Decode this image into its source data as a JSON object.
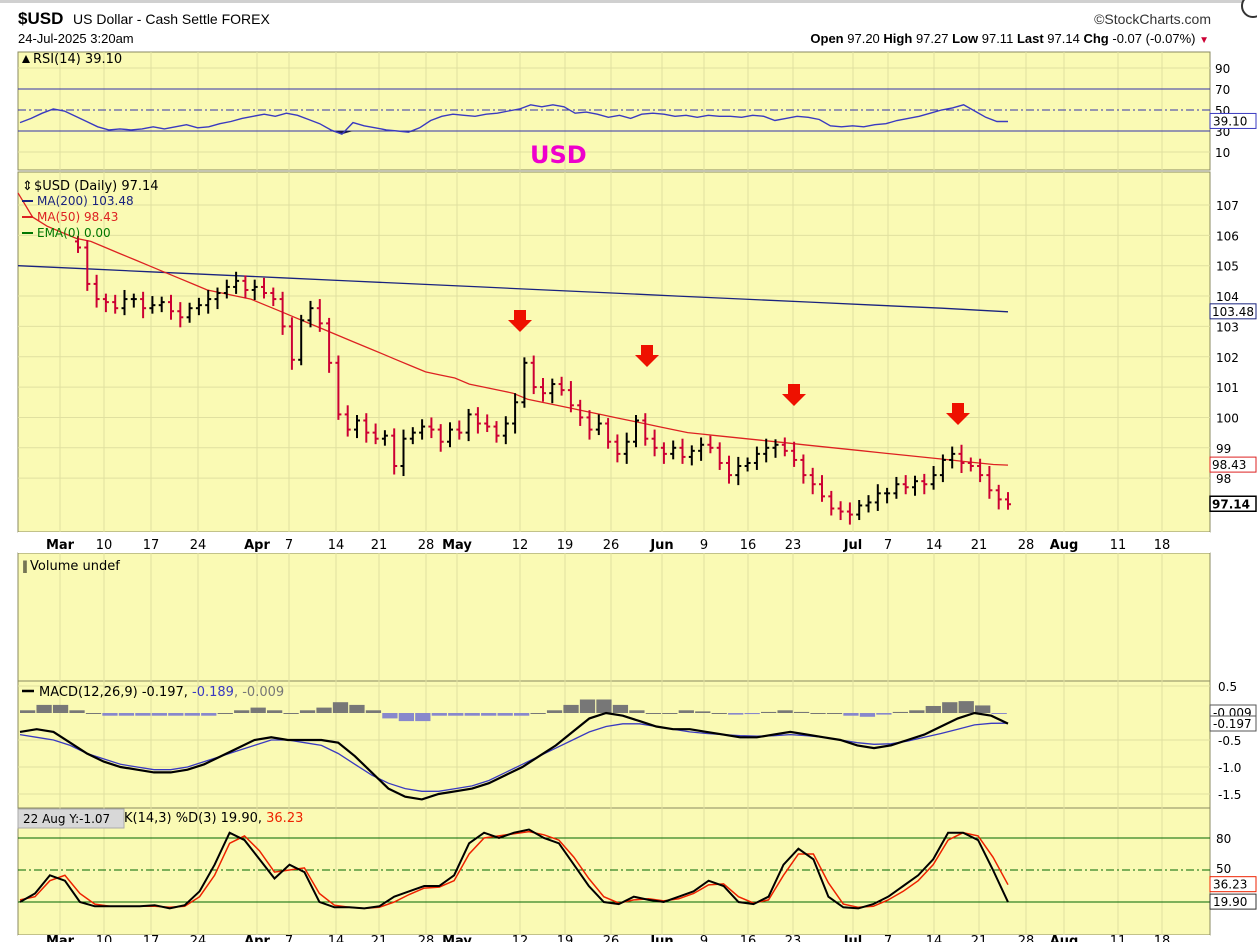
{
  "header": {
    "symbol": "$USD",
    "name": "US Dollar - Cash Settle FOREX",
    "date": "24-Jul-2025 3:20am",
    "brand": "©StockCharts.com",
    "quote": {
      "open_label": "Open",
      "open": "97.20",
      "high_label": "High",
      "high": "97.27",
      "low_label": "Low",
      "low": "97.11",
      "last_label": "Last",
      "last": "97.14",
      "chg_label": "Chg",
      "chg": "-0.07 (-0.07%)",
      "down_arrow": "▼"
    }
  },
  "colors": {
    "panel_bg": "#fafab4",
    "grid": "#e0e0a0",
    "up": "#000000",
    "down": "#cc0033",
    "ma200": "#1a237e",
    "ma50": "#dd2222",
    "rsi": "#3a3ac0",
    "macd": "#000000",
    "signal": "#3a3ac0",
    "hist": "#777777",
    "arrow": "#ee1100",
    "annotation": "#ee00cc"
  },
  "annotation": "USD",
  "chart_data": [
    {
      "type": "line",
      "panel": "rsi",
      "title": "RSI(14) 39.10",
      "yticks": [
        "90",
        "70",
        "50",
        "30",
        "10"
      ],
      "last_value": "39.10",
      "ylim": [
        0,
        100
      ],
      "levels": [
        70,
        30
      ],
      "series": [
        {
          "name": "RSI(14)",
          "values": [
            38,
            42,
            47,
            51,
            49,
            44,
            39,
            34,
            31,
            32,
            31,
            32,
            34,
            32,
            34,
            36,
            33,
            34,
            37,
            39,
            42,
            44,
            46,
            44,
            47,
            45,
            41,
            37,
            31,
            27,
            38,
            35,
            33,
            31,
            30,
            29,
            33,
            40,
            44,
            46,
            45,
            44,
            46,
            47,
            49,
            51,
            55,
            53,
            55,
            53,
            47,
            48,
            46,
            43,
            45,
            42,
            46,
            47,
            46,
            44,
            45,
            43,
            45,
            44,
            44,
            43,
            45,
            44,
            40,
            42,
            44,
            43,
            41,
            35,
            34,
            35,
            34,
            36,
            37,
            40,
            42,
            44,
            47,
            50,
            52,
            55,
            49,
            43,
            39,
            39
          ]
        }
      ]
    },
    {
      "type": "ohlc",
      "panel": "price",
      "title": "$USD (Daily) 97.14",
      "legend": [
        {
          "label": "MA(200) 103.48",
          "color": "#1a237e"
        },
        {
          "label": "MA(50) 98.43",
          "color": "#dd2222"
        },
        {
          "label": "EMA(0) 0.00",
          "color": "#007700"
        }
      ],
      "yticks": [
        "107",
        "106",
        "105",
        "104",
        "103",
        "102",
        "101",
        "100",
        "99",
        "98"
      ],
      "price_tags": [
        {
          "label": "103.48",
          "value": 103.48
        },
        {
          "label": "98.43",
          "value": 98.43
        },
        {
          "label": "97.14",
          "value": 97.14
        }
      ],
      "ylim": [
        96.55,
        107.55
      ],
      "closes": [
        105.6,
        104.4,
        103.9,
        103.8,
        103.6,
        103.9,
        103.9,
        103.6,
        103.7,
        103.8,
        103.5,
        103.3,
        103.6,
        103.7,
        103.9,
        104.1,
        104.3,
        104.5,
        104.2,
        104.3,
        104.1,
        103.9,
        103.0,
        101.9,
        103.2,
        103.6,
        103.1,
        101.8,
        100.1,
        99.6,
        99.9,
        99.5,
        99.3,
        99.4,
        98.4,
        99.3,
        99.5,
        99.7,
        99.6,
        99.2,
        99.6,
        99.5,
        100.1,
        99.8,
        99.7,
        99.4,
        99.8,
        100.5,
        101.8,
        101.0,
        100.8,
        101.1,
        100.9,
        100.4,
        100.0,
        99.6,
        99.8,
        99.2,
        98.8,
        99.2,
        99.9,
        99.3,
        99.0,
        98.8,
        99.0,
        98.7,
        98.9,
        99.1,
        99.0,
        98.5,
        98.1,
        98.4,
        98.5,
        98.8,
        99.0,
        99.1,
        98.9,
        98.6,
        98.1,
        97.8,
        97.4,
        97.0,
        96.9,
        96.8,
        97.1,
        97.2,
        97.5,
        97.5,
        97.8,
        97.7,
        97.9,
        97.8,
        98.1,
        98.6,
        98.8,
        98.5,
        98.4,
        98.1,
        97.6,
        97.3,
        97.14
      ],
      "ma50": [
        107.4,
        106.6,
        106.3,
        106.1,
        105.9,
        105.8,
        105.6,
        105.4,
        105.2,
        105.0,
        104.8,
        104.6,
        104.4,
        104.2,
        104.1,
        104.0,
        103.9,
        103.7,
        103.5,
        103.3,
        103.1,
        102.9,
        102.7,
        102.5,
        102.3,
        102.1,
        101.9,
        101.7,
        101.5,
        101.4,
        101.3,
        101.1,
        101.0,
        100.9,
        100.8,
        100.6,
        100.5,
        100.4,
        100.3,
        100.2,
        100.1,
        100.0,
        99.9,
        99.8,
        99.7,
        99.6,
        99.5,
        99.45,
        99.4,
        99.35,
        99.3,
        99.25,
        99.2,
        99.15,
        99.1,
        99.05,
        99.0,
        98.95,
        98.9,
        98.85,
        98.8,
        98.75,
        98.7,
        98.65,
        98.6,
        98.55,
        98.5,
        98.45,
        98.43
      ],
      "ma200": [
        105.0,
        104.9,
        104.8,
        104.7,
        104.6,
        104.5,
        104.4,
        104.3,
        104.2,
        104.1,
        104.0,
        103.9,
        103.8,
        103.7,
        103.6,
        103.48
      ],
      "arrows_at_days": [
        48,
        59,
        76,
        92
      ]
    },
    {
      "type": "bar",
      "panel": "volume",
      "title": "Volume undef"
    },
    {
      "type": "line",
      "panel": "macd",
      "title_prefix": "MACD(12,26,9)",
      "values_text": [
        "-0.197",
        "-0.189",
        "-0.009"
      ],
      "yticks": [
        "0.5",
        "-0.5",
        "-1.0",
        "-1.5"
      ],
      "tags": [
        {
          "label": "-0.009",
          "value": -0.009
        },
        {
          "label": "-0.197",
          "value": -0.197
        }
      ],
      "ylim": [
        -1.75,
        0.7
      ],
      "series": [
        {
          "name": "MACD",
          "values": [
            -0.35,
            -0.3,
            -0.35,
            -0.55,
            -0.75,
            -0.9,
            -1.0,
            -1.05,
            -1.1,
            -1.1,
            -1.05,
            -0.95,
            -0.8,
            -0.65,
            -0.5,
            -0.45,
            -0.5,
            -0.5,
            -0.5,
            -0.55,
            -0.8,
            -1.1,
            -1.4,
            -1.55,
            -1.6,
            -1.5,
            -1.45,
            -1.4,
            -1.3,
            -1.15,
            -1.0,
            -0.8,
            -0.6,
            -0.35,
            -0.1,
            0.0,
            -0.05,
            -0.15,
            -0.25,
            -0.3,
            -0.3,
            -0.35,
            -0.4,
            -0.45,
            -0.45,
            -0.4,
            -0.35,
            -0.4,
            -0.45,
            -0.5,
            -0.6,
            -0.65,
            -0.6,
            -0.5,
            -0.4,
            -0.25,
            -0.1,
            0.0,
            -0.05,
            -0.197
          ]
        },
        {
          "name": "Signal",
          "values": [
            -0.4,
            -0.45,
            -0.5,
            -0.6,
            -0.75,
            -0.85,
            -0.95,
            -1.0,
            -1.05,
            -1.05,
            -1.0,
            -0.9,
            -0.8,
            -0.7,
            -0.6,
            -0.5,
            -0.5,
            -0.55,
            -0.6,
            -0.75,
            -0.95,
            -1.15,
            -1.3,
            -1.4,
            -1.45,
            -1.45,
            -1.4,
            -1.35,
            -1.25,
            -1.1,
            -0.95,
            -0.8,
            -0.65,
            -0.5,
            -0.35,
            -0.25,
            -0.2,
            -0.2,
            -0.25,
            -0.3,
            -0.35,
            -0.38,
            -0.4,
            -0.42,
            -0.43,
            -0.42,
            -0.4,
            -0.42,
            -0.45,
            -0.5,
            -0.55,
            -0.58,
            -0.57,
            -0.52,
            -0.45,
            -0.38,
            -0.3,
            -0.22,
            -0.19,
            -0.189
          ]
        },
        {
          "name": "Histogram",
          "values": [
            0.05,
            0.15,
            0.15,
            0.05,
            0.0,
            -0.05,
            -0.05,
            -0.05,
            -0.05,
            -0.05,
            -0.05,
            -0.05,
            0.0,
            0.05,
            0.1,
            0.05,
            0.0,
            0.05,
            0.1,
            0.2,
            0.15,
            0.05,
            -0.1,
            -0.15,
            -0.15,
            -0.05,
            -0.05,
            -0.05,
            -0.05,
            -0.05,
            -0.05,
            0.0,
            0.05,
            0.15,
            0.25,
            0.25,
            0.15,
            0.05,
            0.0,
            0.0,
            0.05,
            0.03,
            0.0,
            -0.03,
            -0.02,
            0.02,
            0.05,
            0.02,
            0.0,
            0.0,
            -0.05,
            -0.07,
            -0.03,
            0.02,
            0.05,
            0.13,
            0.2,
            0.22,
            0.14,
            -0.009
          ]
        }
      ]
    },
    {
      "type": "line",
      "panel": "stoch",
      "title_prefix": "%K(14,3) %D(3)",
      "values_text": [
        "19.90",
        "36.23"
      ],
      "tooltip": "22 Aug Y:-1.07",
      "yticks": [
        "80",
        "50"
      ],
      "tags": [
        {
          "label": "36.23",
          "value": 36.23
        },
        {
          "label": "19.90",
          "value": 19.9
        }
      ],
      "ylim": [
        0,
        100
      ],
      "levels": [
        80,
        50,
        20
      ],
      "series": [
        {
          "name": "%K",
          "values": [
            20,
            28,
            45,
            40,
            20,
            16,
            16,
            16,
            16,
            17,
            14,
            17,
            30,
            55,
            85,
            78,
            60,
            42,
            55,
            48,
            20,
            15,
            15,
            14,
            16,
            25,
            30,
            35,
            35,
            45,
            75,
            85,
            80,
            85,
            88,
            80,
            75,
            55,
            35,
            20,
            18,
            25,
            22,
            20,
            25,
            30,
            40,
            35,
            20,
            18,
            25,
            55,
            70,
            60,
            25,
            15,
            14,
            18,
            25,
            35,
            45,
            60,
            85,
            85,
            78,
            50,
            19.9
          ]
        },
        {
          "name": "%D",
          "values": [
            22,
            25,
            40,
            45,
            28,
            18,
            16,
            16,
            16,
            16,
            15,
            16,
            25,
            45,
            75,
            82,
            68,
            48,
            50,
            52,
            28,
            17,
            15,
            14,
            15,
            20,
            27,
            33,
            34,
            40,
            65,
            80,
            82,
            84,
            86,
            83,
            78,
            62,
            42,
            25,
            19,
            22,
            23,
            21,
            23,
            28,
            36,
            37,
            25,
            19,
            22,
            45,
            65,
            65,
            38,
            18,
            15,
            16,
            22,
            30,
            40,
            55,
            78,
            85,
            82,
            62,
            36.23
          ]
        }
      ]
    }
  ],
  "x_axis": {
    "labels": [
      "Mar",
      "10",
      "17",
      "24",
      "Apr",
      "7",
      "14",
      "21",
      "28",
      "May",
      "12",
      "19",
      "26",
      "Jun",
      "9",
      "16",
      "23",
      "Jul",
      "7",
      "14",
      "21",
      "28",
      "Aug",
      "11",
      "18"
    ],
    "month_labels": [
      "Mar",
      "Apr",
      "May",
      "Jun",
      "Jul",
      "Aug"
    ]
  }
}
